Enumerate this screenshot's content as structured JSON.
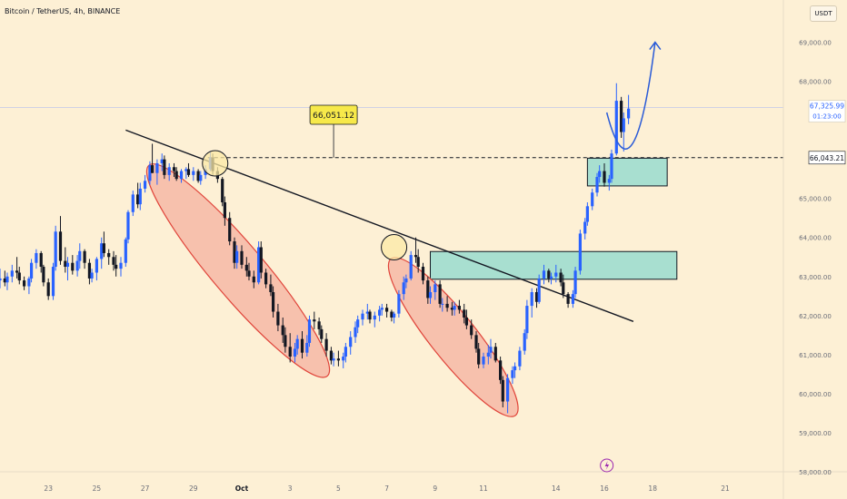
{
  "header": {
    "symbol_title": "Bitcoin / TetherUS, 4h, BINANCE",
    "currency_badge": "USDT"
  },
  "chart_data": {
    "type": "candlestick",
    "ylim": [
      58000,
      69500
    ],
    "y_ticks": [
      {
        "value": 69000,
        "label": "69,000.00"
      },
      {
        "value": 68000,
        "label": "68,000.00"
      },
      {
        "value": 65000,
        "label": "65,000.00"
      },
      {
        "value": 64000,
        "label": "64,000.00"
      },
      {
        "value": 63000,
        "label": "63,000.00"
      },
      {
        "value": 62000,
        "label": "62,000.00"
      },
      {
        "value": 61000,
        "label": "61,000.00"
      },
      {
        "value": 60000,
        "label": "60,000.00"
      },
      {
        "value": 59000,
        "label": "59,000.00"
      },
      {
        "value": 58000,
        "label": "58,000.00"
      }
    ],
    "x_ticks": [
      {
        "day": 23,
        "label": "23",
        "bold": false
      },
      {
        "day": 25,
        "label": "25",
        "bold": false
      },
      {
        "day": 27,
        "label": "27",
        "bold": false
      },
      {
        "day": 29,
        "label": "29",
        "bold": false
      },
      {
        "day": 31,
        "label": "Oct",
        "bold": true
      },
      {
        "day": 33,
        "label": "3",
        "bold": false
      },
      {
        "day": 35,
        "label": "5",
        "bold": false
      },
      {
        "day": 37,
        "label": "7",
        "bold": false
      },
      {
        "day": 39,
        "label": "9",
        "bold": false
      },
      {
        "day": 41,
        "label": "11",
        "bold": false
      },
      {
        "day": 44,
        "label": "14",
        "bold": false
      },
      {
        "day": 46,
        "label": "16",
        "bold": false
      },
      {
        "day": 48,
        "label": "18",
        "bold": false
      },
      {
        "day": 51,
        "label": "21",
        "bold": false
      }
    ],
    "current_price": {
      "value": 67325.99,
      "label": "67,325.99",
      "countdown": "01:23:00",
      "color": "#2962ff"
    },
    "level_price": {
      "value": 66043.21,
      "label": "66,043.21"
    },
    "callout": {
      "value": 66051.12,
      "label": "66,051.12",
      "day": 34.8
    },
    "colors": {
      "background": "#fdf0d5",
      "bull": "#2962ff",
      "bear": "#131722",
      "zone_fill": "#a8dfd0",
      "ellipse_fill": "#f6b9a6",
      "ellipse_stroke": "#e0443a",
      "circle_fill": "#fbeaa6",
      "callout_fill": "#f7e94a",
      "arrow": "#2a5bd7"
    },
    "trendline": {
      "start": [
        26.2,
        66750
      ],
      "end": [
        47.2,
        61850
      ]
    },
    "zones": [
      {
        "day_start": 38.8,
        "day_end": 49.0,
        "top": 63640,
        "bottom": 62930
      },
      {
        "day_start": 45.3,
        "day_end": 48.6,
        "top": 66030,
        "bottom": 65320
      }
    ],
    "ellipses": [
      {
        "from": [
          27.5,
          65600
        ],
        "to": [
          34.2,
          60700
        ],
        "half_width": 16
      },
      {
        "from": [
          37.5,
          63200
        ],
        "to": [
          42.0,
          59700
        ],
        "half_width": 14
      }
    ],
    "circles": [
      {
        "day": 29.9,
        "price": 65900
      },
      {
        "day": 37.3,
        "price": 63750
      }
    ],
    "projection": [
      [
        46.1,
        67200
      ],
      [
        46.8,
        66000
      ],
      [
        47.5,
        66300
      ],
      [
        48.1,
        69000
      ]
    ],
    "candles": [
      [
        21.0,
        62900,
        63200,
        62700,
        62950
      ],
      [
        21.2,
        62950,
        63150,
        62750,
        62850
      ],
      [
        21.3,
        62850,
        63100,
        62650,
        63000
      ],
      [
        21.5,
        63000,
        63300,
        62850,
        63150
      ],
      [
        21.7,
        63150,
        63500,
        62950,
        63100
      ],
      [
        21.8,
        63100,
        63250,
        62800,
        62900
      ],
      [
        22.0,
        62900,
        63000,
        62650,
        62750
      ],
      [
        22.2,
        62750,
        63000,
        62550,
        62950
      ],
      [
        22.3,
        62950,
        63450,
        62850,
        63350
      ],
      [
        22.5,
        63350,
        63700,
        63200,
        63600
      ],
      [
        22.7,
        63600,
        63650,
        63100,
        63250
      ],
      [
        22.8,
        63250,
        63300,
        62750,
        62850
      ],
      [
        23.0,
        62850,
        62950,
        62400,
        62500
      ],
      [
        23.2,
        62500,
        63350,
        62400,
        63250
      ],
      [
        23.3,
        63250,
        64300,
        63150,
        64150
      ],
      [
        23.5,
        64150,
        64550,
        63300,
        63400
      ],
      [
        23.7,
        63400,
        63750,
        63100,
        63250
      ],
      [
        23.8,
        63250,
        63500,
        62900,
        63350
      ],
      [
        24.0,
        63350,
        63550,
        63050,
        63150
      ],
      [
        24.2,
        63150,
        63550,
        63000,
        63400
      ],
      [
        24.3,
        63400,
        63850,
        63200,
        63650
      ],
      [
        24.5,
        63650,
        63700,
        63200,
        63350
      ],
      [
        24.7,
        63350,
        63450,
        62800,
        62950
      ],
      [
        24.8,
        62950,
        63200,
        62850,
        63100
      ],
      [
        25.0,
        63100,
        63500,
        62900,
        63450
      ],
      [
        25.2,
        63450,
        64000,
        63200,
        63850
      ],
      [
        25.3,
        63850,
        64150,
        63500,
        63600
      ],
      [
        25.5,
        63600,
        63700,
        63300,
        63500
      ],
      [
        25.7,
        63500,
        63650,
        63150,
        63300
      ],
      [
        25.8,
        63300,
        63550,
        63000,
        63200
      ],
      [
        26.0,
        63200,
        63500,
        63000,
        63350
      ],
      [
        26.2,
        63350,
        64000,
        63250,
        63950
      ],
      [
        26.3,
        63950,
        64700,
        63850,
        64650
      ],
      [
        26.5,
        64650,
        65200,
        64550,
        65100
      ],
      [
        26.7,
        65100,
        65400,
        64750,
        64850
      ],
      [
        26.8,
        64850,
        65400,
        64700,
        65250
      ],
      [
        27.0,
        65250,
        65600,
        65150,
        65450
      ],
      [
        27.2,
        65450,
        65950,
        65350,
        65850
      ],
      [
        27.3,
        65850,
        66400,
        65650,
        65650
      ],
      [
        27.5,
        65650,
        66000,
        65350,
        65900
      ],
      [
        27.7,
        65900,
        66150,
        65700,
        66000
      ],
      [
        27.8,
        66000,
        66100,
        65500,
        65600
      ],
      [
        28.0,
        65600,
        65900,
        65450,
        65800
      ],
      [
        28.2,
        65800,
        65900,
        65550,
        65700
      ],
      [
        28.3,
        65700,
        65800,
        65450,
        65500
      ],
      [
        28.5,
        65500,
        65750,
        65400,
        65700
      ],
      [
        28.7,
        65700,
        65800,
        65500,
        65750
      ],
      [
        28.8,
        65750,
        65900,
        65550,
        65600
      ],
      [
        29.0,
        65600,
        65800,
        65450,
        65700
      ],
      [
        29.2,
        65700,
        65750,
        65400,
        65450
      ],
      [
        29.3,
        65450,
        65700,
        65350,
        65600
      ],
      [
        29.5,
        65600,
        65850,
        65500,
        65750
      ],
      [
        29.7,
        65750,
        66200,
        65700,
        66050
      ],
      [
        29.8,
        66050,
        66150,
        65600,
        65700
      ],
      [
        30.0,
        65700,
        65800,
        65400,
        65500
      ],
      [
        30.2,
        65500,
        65550,
        64800,
        64900
      ],
      [
        30.3,
        64900,
        65050,
        64300,
        64500
      ],
      [
        30.5,
        64500,
        64650,
        63800,
        63900
      ],
      [
        30.7,
        63900,
        64000,
        63200,
        63350
      ],
      [
        30.8,
        63350,
        63800,
        63200,
        63650
      ],
      [
        31.0,
        63650,
        63800,
        63200,
        63300
      ],
      [
        31.2,
        63300,
        63500,
        63000,
        63150
      ],
      [
        31.3,
        63150,
        63350,
        62900,
        63000
      ],
      [
        31.5,
        63000,
        63150,
        62700,
        62850
      ],
      [
        31.7,
        62850,
        63900,
        62800,
        63750
      ],
      [
        31.8,
        63750,
        63900,
        62950,
        63100
      ],
      [
        32.0,
        63100,
        63200,
        62700,
        62800
      ],
      [
        32.2,
        62800,
        63050,
        62500,
        62600
      ],
      [
        32.3,
        62600,
        62750,
        61950,
        62100
      ],
      [
        32.5,
        62100,
        62300,
        61600,
        61750
      ],
      [
        32.7,
        61750,
        61950,
        61300,
        61500
      ],
      [
        32.8,
        61500,
        61700,
        61050,
        61200
      ],
      [
        33.0,
        61200,
        61550,
        60800,
        60950
      ],
      [
        33.2,
        60950,
        61300,
        60800,
        61150
      ],
      [
        33.3,
        61150,
        61500,
        61000,
        61400
      ],
      [
        33.5,
        61400,
        61600,
        60900,
        61050
      ],
      [
        33.7,
        61050,
        61500,
        60950,
        61300
      ],
      [
        33.8,
        61300,
        62000,
        61200,
        61900
      ],
      [
        34.0,
        61900,
        62100,
        61650,
        61850
      ],
      [
        34.2,
        61850,
        61950,
        61500,
        61650
      ],
      [
        34.3,
        61650,
        61750,
        61300,
        61400
      ],
      [
        34.5,
        61400,
        61550,
        60950,
        61100
      ],
      [
        34.7,
        61100,
        61200,
        60750,
        60850
      ],
      [
        34.8,
        60850,
        61050,
        60700,
        60900
      ],
      [
        35.0,
        60900,
        61100,
        60700,
        60850
      ],
      [
        35.2,
        60850,
        61050,
        60650,
        60950
      ],
      [
        35.3,
        60950,
        61300,
        60800,
        61200
      ],
      [
        35.5,
        61200,
        61600,
        61000,
        61450
      ],
      [
        35.7,
        61450,
        61850,
        61300,
        61700
      ],
      [
        35.8,
        61700,
        62000,
        61550,
        61900
      ],
      [
        36.0,
        61900,
        62150,
        61750,
        62050
      ],
      [
        36.2,
        62050,
        62300,
        61900,
        62100
      ],
      [
        36.3,
        62100,
        62150,
        61800,
        61900
      ],
      [
        36.5,
        61900,
        62100,
        61700,
        62000
      ],
      [
        36.7,
        62000,
        62250,
        61850,
        62150
      ],
      [
        36.8,
        62150,
        62300,
        62000,
        62200
      ],
      [
        37.0,
        62200,
        62300,
        61950,
        62100
      ],
      [
        37.2,
        62100,
        62150,
        61850,
        61950
      ],
      [
        37.3,
        61950,
        62100,
        61800,
        62050
      ],
      [
        37.5,
        62050,
        62650,
        61950,
        62550
      ],
      [
        37.7,
        62550,
        63000,
        62400,
        62850
      ],
      [
        37.8,
        62850,
        63050,
        62700,
        62950
      ],
      [
        38.0,
        62950,
        63650,
        62900,
        63550
      ],
      [
        38.2,
        63550,
        64000,
        63350,
        63500
      ],
      [
        38.3,
        63500,
        63700,
        63100,
        63250
      ],
      [
        38.5,
        63250,
        63350,
        62800,
        62900
      ],
      [
        38.7,
        62900,
        63000,
        62300,
        62450
      ],
      [
        38.8,
        62450,
        62750,
        62300,
        62600
      ],
      [
        39.0,
        62600,
        62900,
        62400,
        62800
      ],
      [
        39.2,
        62800,
        62900,
        62200,
        62300
      ],
      [
        39.3,
        62300,
        62450,
        62100,
        62300
      ],
      [
        39.5,
        62300,
        62500,
        62100,
        62200
      ],
      [
        39.7,
        62200,
        62350,
        62000,
        62150
      ],
      [
        39.8,
        62150,
        62350,
        62000,
        62250
      ],
      [
        40.0,
        62250,
        62400,
        62050,
        62150
      ],
      [
        40.2,
        62150,
        62300,
        61800,
        61950
      ],
      [
        40.3,
        61950,
        62150,
        61650,
        61750
      ],
      [
        40.5,
        61750,
        61900,
        61400,
        61500
      ],
      [
        40.7,
        61500,
        61600,
        61050,
        61150
      ],
      [
        40.8,
        61150,
        61300,
        60650,
        60750
      ],
      [
        41.0,
        60750,
        61050,
        60650,
        60950
      ],
      [
        41.2,
        60950,
        61250,
        60750,
        61050
      ],
      [
        41.3,
        61050,
        61400,
        60900,
        61200
      ],
      [
        41.5,
        61200,
        61300,
        60800,
        60850
      ],
      [
        41.7,
        60850,
        60950,
        60250,
        60350
      ],
      [
        41.8,
        60350,
        60450,
        59650,
        59800
      ],
      [
        42.0,
        59800,
        60500,
        59500,
        60400
      ],
      [
        42.2,
        60400,
        60700,
        60250,
        60600
      ],
      [
        42.3,
        60600,
        60800,
        60400,
        60700
      ],
      [
        42.5,
        60700,
        61200,
        60600,
        61100
      ],
      [
        42.7,
        61100,
        61650,
        61000,
        61550
      ],
      [
        42.8,
        61550,
        62400,
        61400,
        62250
      ],
      [
        43.0,
        62250,
        62700,
        61950,
        62600
      ],
      [
        43.2,
        62600,
        62700,
        62200,
        62350
      ],
      [
        43.3,
        62350,
        63050,
        62300,
        62950
      ],
      [
        43.5,
        62950,
        63300,
        62800,
        63150
      ],
      [
        43.7,
        63150,
        63200,
        62850,
        62950
      ],
      [
        43.8,
        62950,
        63100,
        62800,
        63000
      ],
      [
        44.0,
        63000,
        63300,
        62850,
        63100
      ],
      [
        44.2,
        63100,
        63200,
        62750,
        62850
      ],
      [
        44.3,
        62850,
        63050,
        62450,
        62550
      ],
      [
        44.5,
        62550,
        62600,
        62200,
        62300
      ],
      [
        44.7,
        62300,
        62650,
        62200,
        62550
      ],
      [
        44.8,
        62550,
        63250,
        62450,
        63150
      ],
      [
        45.0,
        63150,
        64200,
        63050,
        64100
      ],
      [
        45.2,
        64100,
        64500,
        63950,
        64400
      ],
      [
        45.3,
        64400,
        64900,
        64300,
        64800
      ],
      [
        45.5,
        64800,
        65250,
        64700,
        65150
      ],
      [
        45.7,
        65150,
        65650,
        65050,
        65550
      ],
      [
        45.8,
        65550,
        65850,
        65400,
        65700
      ],
      [
        46.0,
        65700,
        65900,
        65300,
        65400
      ],
      [
        46.2,
        65400,
        65600,
        65200,
        65500
      ],
      [
        46.3,
        65500,
        66250,
        65400,
        66150
      ],
      [
        46.5,
        66150,
        67950,
        66100,
        67500
      ],
      [
        46.7,
        67500,
        67600,
        66550,
        66700
      ],
      [
        46.8,
        66700,
        67200,
        66200,
        67050
      ],
      [
        47.0,
        67050,
        67650,
        66900,
        67300
      ]
    ]
  }
}
